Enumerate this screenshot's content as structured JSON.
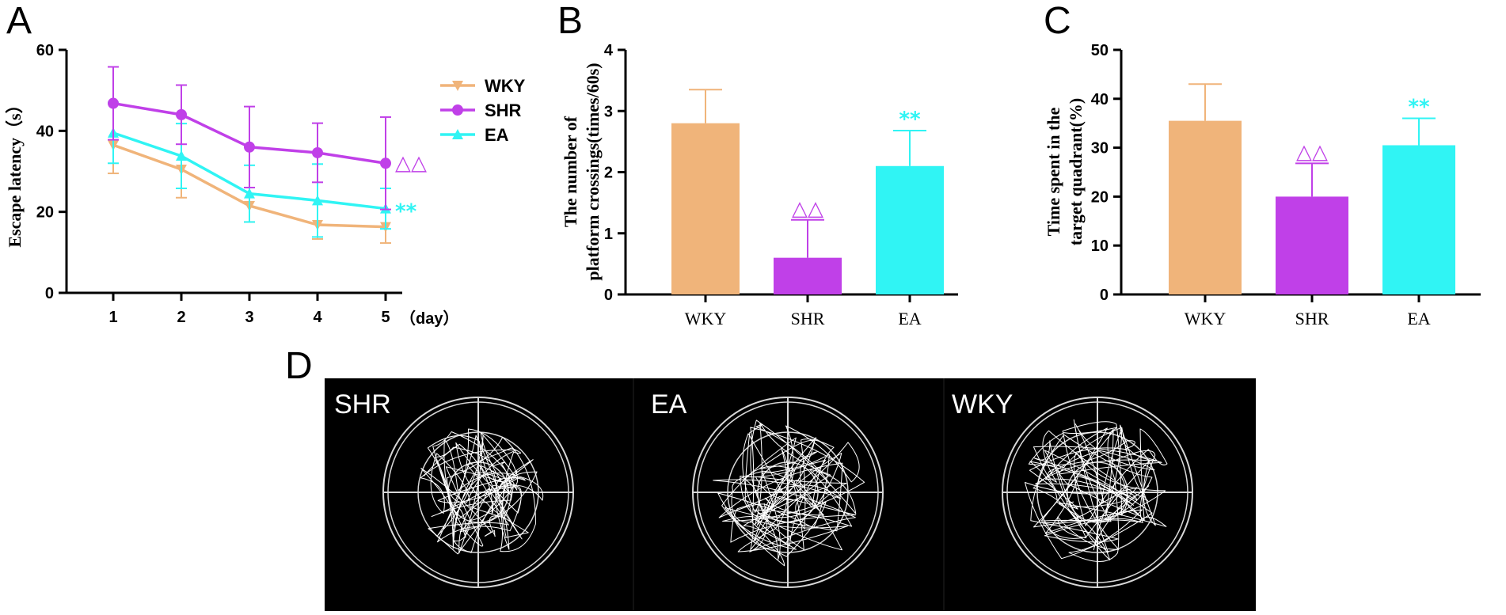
{
  "panels": {
    "a": "A",
    "b": "B",
    "c": "C",
    "d": "D"
  },
  "colors": {
    "WKY": "#f0b47a",
    "SHR": "#c040e8",
    "EA": "#30f4f4"
  },
  "chart_data": [
    {
      "type": "line",
      "panel": "A",
      "ylabel": "Escape latency（s）",
      "xlabel": "（day）",
      "x": [
        1,
        2,
        3,
        4,
        5
      ],
      "xtick_labels": [
        "1",
        "2",
        "3",
        "4",
        "5"
      ],
      "ylim": [
        0,
        60
      ],
      "yticks": [
        0,
        20,
        40,
        60
      ],
      "ytick_labels": [
        "0",
        "20",
        "40",
        "60"
      ],
      "series": [
        {
          "name": "WKY",
          "values": [
            36.5,
            30.5,
            21.5,
            16.8,
            16.3
          ],
          "err": [
            7,
            7,
            4,
            3.5,
            4
          ],
          "err_dir": "down",
          "marker": "triangle-down"
        },
        {
          "name": "SHR",
          "values": [
            46.8,
            44,
            36,
            34.6,
            32
          ],
          "err": [
            9,
            7.3,
            10,
            7.3,
            11.4
          ],
          "err_dir": "both",
          "marker": "circle"
        },
        {
          "name": "EA",
          "values": [
            39.5,
            33.8,
            24.5,
            22.8,
            20.8
          ],
          "err": [
            7.5,
            8,
            7,
            9,
            5
          ],
          "err_dir": "both",
          "marker": "triangle-up"
        }
      ],
      "legend": [
        "WKY",
        "SHR",
        "EA"
      ],
      "annotations": [
        {
          "text": "△△",
          "series": "SHR",
          "x": 5
        },
        {
          "text": "**",
          "series": "EA",
          "x": 5
        }
      ]
    },
    {
      "type": "bar",
      "panel": "B",
      "ylabel_lines": [
        "The number of",
        "platform crossings(times/60s)"
      ],
      "categories": [
        "WKY",
        "SHR",
        "EA"
      ],
      "values": [
        2.8,
        0.6,
        2.1
      ],
      "errors": [
        0.55,
        0.62,
        0.58
      ],
      "ylim": [
        0,
        4
      ],
      "yticks": [
        0,
        1,
        2,
        3,
        4
      ],
      "ytick_labels": [
        "0",
        "1",
        "2",
        "3",
        "4"
      ],
      "annotations": [
        "",
        "△△",
        "**"
      ]
    },
    {
      "type": "bar",
      "panel": "C",
      "ylabel_lines": [
        "Time spent in the",
        "target quadrant(%)"
      ],
      "categories": [
        "WKY",
        "SHR",
        "EA"
      ],
      "values": [
        35.5,
        20,
        30.5
      ],
      "errors": [
        7.5,
        6.8,
        5.5
      ],
      "ylim": [
        0,
        50
      ],
      "yticks": [
        0,
        10,
        20,
        30,
        40,
        50
      ],
      "ytick_labels": [
        "0",
        "10",
        "20",
        "30",
        "40",
        "50"
      ],
      "annotations": [
        "",
        "△△",
        "**"
      ]
    }
  ],
  "traces": [
    {
      "label": "SHR"
    },
    {
      "label": "EA"
    },
    {
      "label": "WKY"
    }
  ]
}
